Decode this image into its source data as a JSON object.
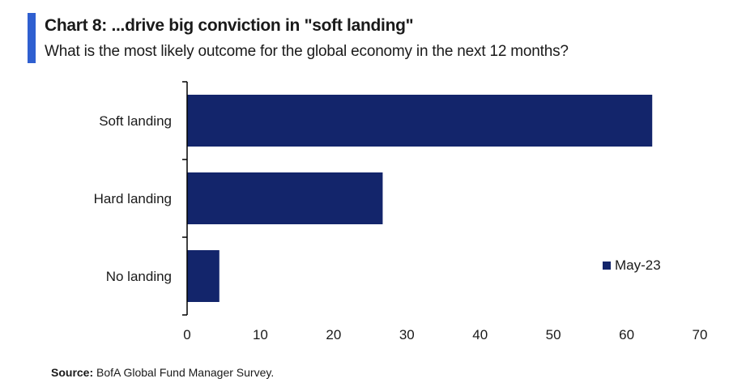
{
  "header": {
    "title": "Chart 8: ...drive big conviction in \"soft landing\"",
    "subtitle": "What is the most likely outcome for the global economy in the next 12 months?"
  },
  "footer": {
    "source_label": "Source:",
    "source_text": "BofA Global Fund Manager Survey."
  },
  "colors": {
    "accent": "#2f5fd0",
    "bar": "#13256b",
    "axis": "#000000"
  },
  "chart_data": {
    "type": "bar",
    "orientation": "horizontal",
    "categories": [
      "Soft landing",
      "Hard landing",
      "No landing"
    ],
    "series": [
      {
        "name": "May-23",
        "values": [
          63.5,
          26.7,
          4.4
        ]
      }
    ],
    "xlim": [
      0,
      70
    ],
    "xticks": [
      0,
      10,
      20,
      30,
      40,
      50,
      60,
      70
    ],
    "grid": false,
    "legend_position": "right"
  }
}
